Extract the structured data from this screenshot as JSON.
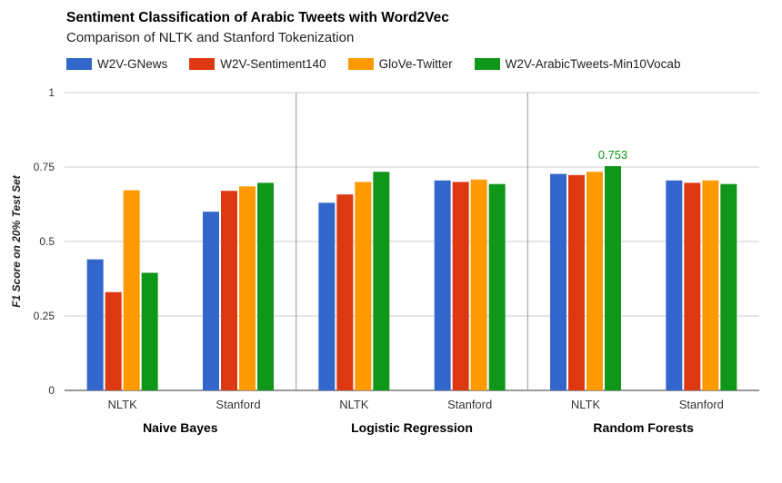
{
  "chart_data": {
    "type": "bar",
    "title": "Sentiment Classification of Arabic Tweets with Word2Vec",
    "subtitle": "Comparison of NLTK and Stanford Tokenization",
    "ylabel": "F1 Score on 20% Test Set",
    "ylim": [
      0,
      1
    ],
    "yticks": [
      "0",
      "0.25",
      "0.5",
      "0.75",
      "1"
    ],
    "grid": true,
    "legend_position": "top",
    "groups": [
      {
        "label": "Naive Bayes",
        "categories": [
          "NLTK",
          "Stanford"
        ]
      },
      {
        "label": "Logistic Regression",
        "categories": [
          "NLTK",
          "Stanford"
        ]
      },
      {
        "label": "Random Forests",
        "categories": [
          "NLTK",
          "Stanford"
        ]
      }
    ],
    "series": [
      {
        "name": "W2V-GNews",
        "color": "#3366cc",
        "values": [
          0.44,
          0.6,
          0.63,
          0.705,
          0.727,
          0.705
        ]
      },
      {
        "name": "W2V-Sentiment140",
        "color": "#dc3912",
        "values": [
          0.33,
          0.67,
          0.658,
          0.7,
          0.723,
          0.697
        ]
      },
      {
        "name": "GloVe-Twitter",
        "color": "#ff9900",
        "values": [
          0.672,
          0.685,
          0.7,
          0.708,
          0.734,
          0.705
        ]
      },
      {
        "name": "W2V-ArabicTweets-Min10Vocab",
        "color": "#109618",
        "values": [
          0.395,
          0.697,
          0.734,
          0.693,
          0.753,
          0.693
        ]
      }
    ],
    "annotations": [
      {
        "series": "W2V-ArabicTweets-Min10Vocab",
        "index": 4,
        "text": "0.753",
        "color": "#109618"
      }
    ]
  }
}
